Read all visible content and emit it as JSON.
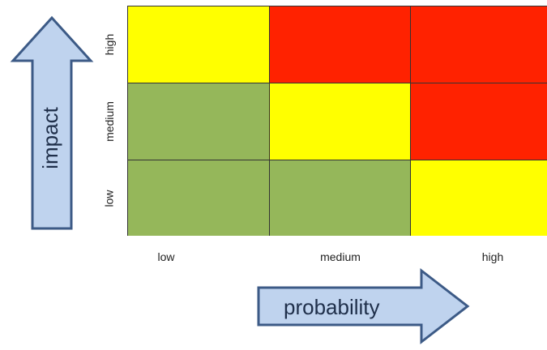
{
  "axes": {
    "y_label": "impact",
    "x_label": "probability",
    "arrow_fill": "#bfd3ee",
    "arrow_stroke": "#3c5a86"
  },
  "rows": [
    {
      "label": "high",
      "cells": [
        "#ffff00",
        "#ff2200",
        "#ff2200"
      ]
    },
    {
      "label": "medium",
      "cells": [
        "#95b75a",
        "#ffff00",
        "#ff2200"
      ]
    },
    {
      "label": "low",
      "cells": [
        "#95b75a",
        "#95b75a",
        "#ffff00"
      ]
    }
  ],
  "columns": [
    "low",
    "medium",
    "high"
  ]
}
